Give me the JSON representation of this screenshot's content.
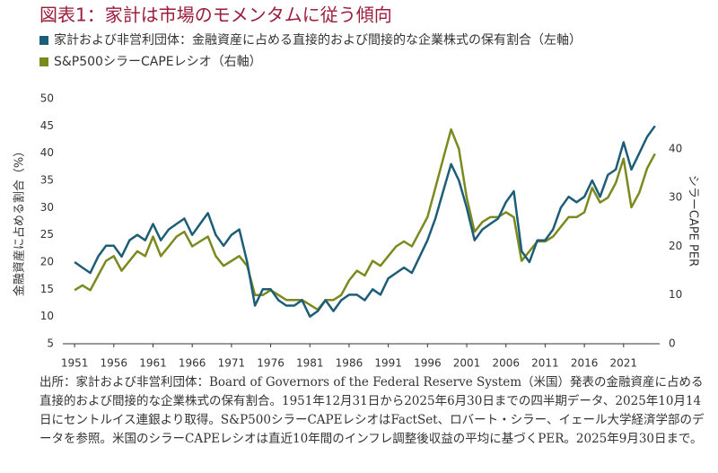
{
  "chart_data": {
    "type": "line",
    "title": "図表1：家計は市場のモメンタムに従う傾向",
    "y_label": "金融資産に占める割合（%）",
    "y2_label": "シラーCAPE PER",
    "source": "出所：家計および非営利団体：Board of Governors of the Federal Reserve System（米国）発表の金融資産に占める直接的および間接的な企業株式の保有割合。1951年12月31日から2025年6月30日までの四半期データ、2025年10月14日にセントルイス連銀より取得。S&P500シラーCAPEレシオはFactSet、ロバート・シラー、イェール大学経済学部のデータを参照。米国のシラーCAPEレシオは直近10年間のインフレ調整後収益の平均に基づくPER。2025年9月30日まで。",
    "x": [
      1951,
      1952,
      1953,
      1954,
      1955,
      1956,
      1957,
      1958,
      1959,
      1960,
      1961,
      1962,
      1963,
      1964,
      1965,
      1966,
      1967,
      1968,
      1969,
      1970,
      1971,
      1972,
      1973,
      1974,
      1975,
      1976,
      1977,
      1978,
      1979,
      1980,
      1981,
      1982,
      1983,
      1984,
      1985,
      1986,
      1987,
      1988,
      1989,
      1990,
      1991,
      1992,
      1993,
      1994,
      1995,
      1996,
      1997,
      1998,
      1999,
      2000,
      2001,
      2002,
      2003,
      2004,
      2005,
      2006,
      2007,
      2008,
      2009,
      2010,
      2011,
      2012,
      2013,
      2014,
      2015,
      2016,
      2017,
      2018,
      2019,
      2020,
      2021,
      2022,
      2023,
      2024,
      2025
    ],
    "xlim": [
      1949.5,
      2025.6
    ],
    "xticks": [
      1951,
      1956,
      1961,
      1966,
      1971,
      1976,
      1981,
      1986,
      1991,
      1996,
      2001,
      2006,
      2011,
      2016,
      2021
    ],
    "ylim": [
      5,
      50
    ],
    "yticks": [
      5,
      10,
      15,
      20,
      25,
      30,
      35,
      40,
      45,
      50
    ],
    "y2lim": [
      0,
      50.3
    ],
    "y2ticks": [
      0,
      10,
      20,
      30,
      40
    ],
    "grid": false,
    "series": [
      {
        "name": "家計および非営利団体：金融資産に占める直接的および間接的な企業株式の保有割合（左軸）",
        "color": "#1d5d78",
        "values": [
          20,
          19,
          18,
          21,
          23,
          23,
          21,
          24,
          25,
          24,
          27,
          24,
          26,
          27,
          28,
          25,
          27,
          29,
          25,
          23,
          25,
          26,
          20,
          12,
          15,
          15,
          13,
          12,
          12,
          13,
          10,
          11,
          13,
          11,
          13,
          14,
          14,
          13,
          15,
          14,
          17,
          18,
          19,
          18,
          21,
          24,
          28,
          33,
          38,
          35,
          30,
          24,
          26,
          27,
          28,
          31,
          33,
          22,
          20,
          24,
          24,
          26,
          30,
          32,
          31,
          32,
          35,
          32,
          36,
          37,
          42,
          37,
          40,
          43,
          45
        ]
      },
      {
        "name": "S&P500シラーCAPEレシオ（右軸）",
        "color": "#7b8a1e",
        "axis": "y2",
        "values": [
          11,
          12,
          11,
          14,
          17,
          18,
          15,
          17,
          19,
          18,
          22,
          18,
          20,
          22,
          23,
          20,
          21,
          22,
          18,
          16,
          17,
          18,
          16,
          10,
          10,
          11,
          10,
          9,
          9,
          9,
          8,
          7,
          9,
          9,
          10,
          13,
          15,
          14,
          17,
          16,
          18,
          20,
          21,
          20,
          23,
          26,
          32,
          38,
          44,
          40,
          30,
          23,
          25,
          26,
          26,
          27,
          26,
          17,
          19,
          21,
          21,
          22,
          24,
          26,
          26,
          27,
          32,
          29,
          30,
          33,
          38,
          28,
          31,
          36,
          39
        ]
      }
    ]
  }
}
